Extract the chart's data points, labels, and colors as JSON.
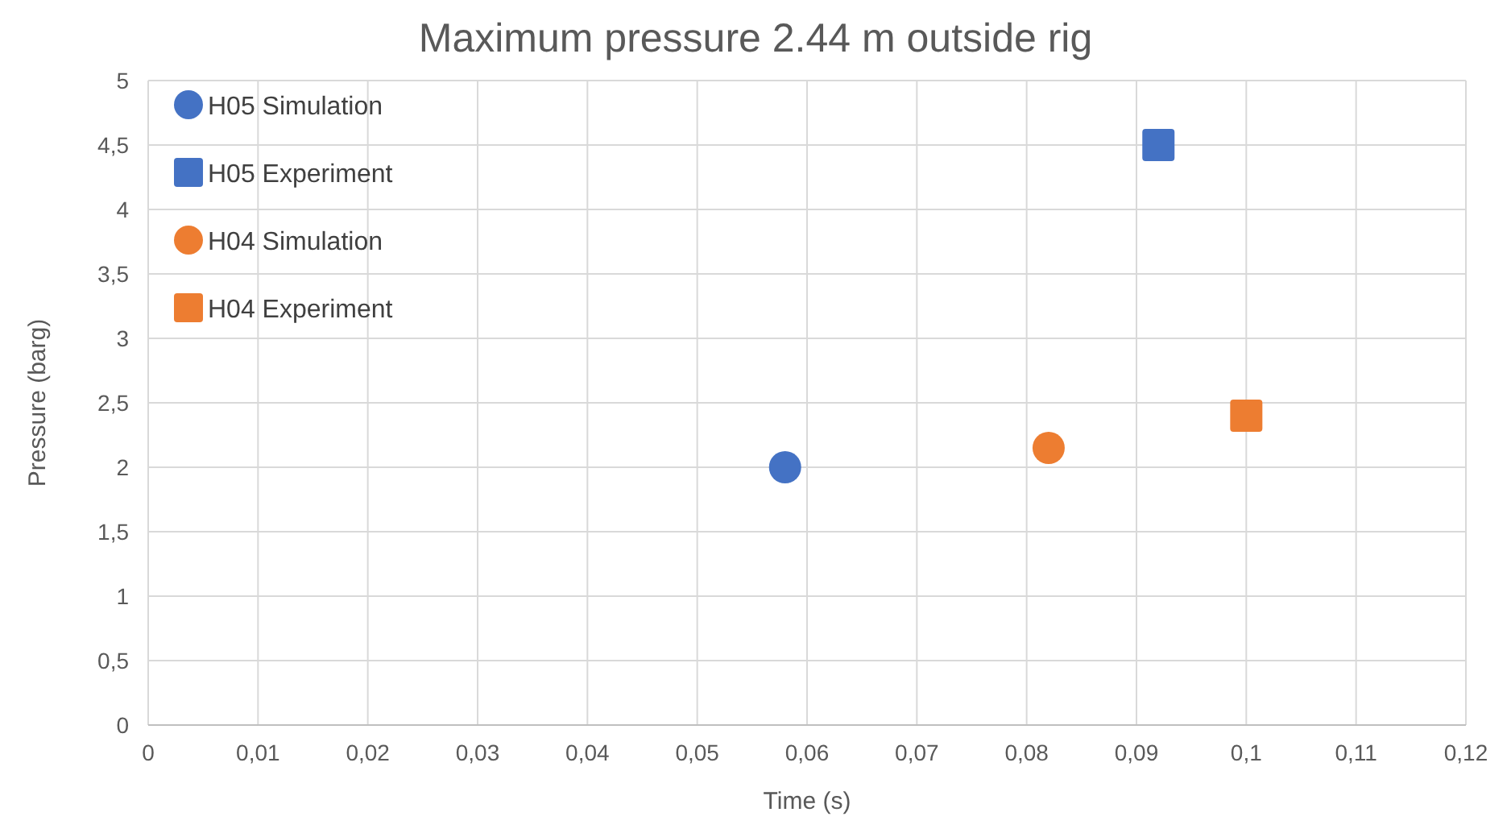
{
  "chart_data": {
    "type": "scatter",
    "title": "Maximum pressure 2.44 m outside rig",
    "xlabel": "Time (s)",
    "ylabel": "Pressure (barg)",
    "xlim": [
      0,
      0.12
    ],
    "ylim": [
      0,
      5
    ],
    "xticks": [
      0,
      {
        "value": 0.01,
        "label": "0,01"
      },
      {
        "value": 0.02,
        "label": "0,02"
      },
      {
        "value": 0.03,
        "label": "0,03"
      },
      {
        "value": 0.04,
        "label": "0,04"
      },
      {
        "value": 0.05,
        "label": "0,05"
      },
      {
        "value": 0.06,
        "label": "0,06"
      },
      {
        "value": 0.07,
        "label": "0,07"
      },
      {
        "value": 0.08,
        "label": "0,08"
      },
      {
        "value": 0.09,
        "label": "0,09"
      },
      {
        "value": 0.1,
        "label": "0,1"
      },
      {
        "value": 0.11,
        "label": "0,11"
      },
      {
        "value": 0.12,
        "label": "0,12"
      }
    ],
    "yticks": [
      0,
      {
        "value": 0.5,
        "label": "0,5"
      },
      1,
      {
        "value": 1.5,
        "label": "1,5"
      },
      2,
      {
        "value": 2.5,
        "label": "2,5"
      },
      3,
      {
        "value": 3.5,
        "label": "3,5"
      },
      4,
      {
        "value": 4.5,
        "label": "4,5"
      },
      5
    ],
    "grid": true,
    "legend": "top left",
    "series": [
      {
        "name": "H05 Simulation",
        "color": "#4472c4",
        "marker": "circle",
        "x": [
          0.058
        ],
        "values": [
          2.0
        ]
      },
      {
        "name": "H05 Experiment",
        "color": "#4472c4",
        "marker": "square",
        "x": [
          0.092
        ],
        "values": [
          4.5
        ]
      },
      {
        "name": "H04 Simulation",
        "color": "#ed7d31",
        "marker": "circle",
        "x": [
          0.082
        ],
        "values": [
          2.15
        ]
      },
      {
        "name": "H04 Experiment",
        "color": "#ed7d31",
        "marker": "square",
        "x": [
          0.1
        ],
        "values": [
          2.4
        ]
      }
    ]
  }
}
